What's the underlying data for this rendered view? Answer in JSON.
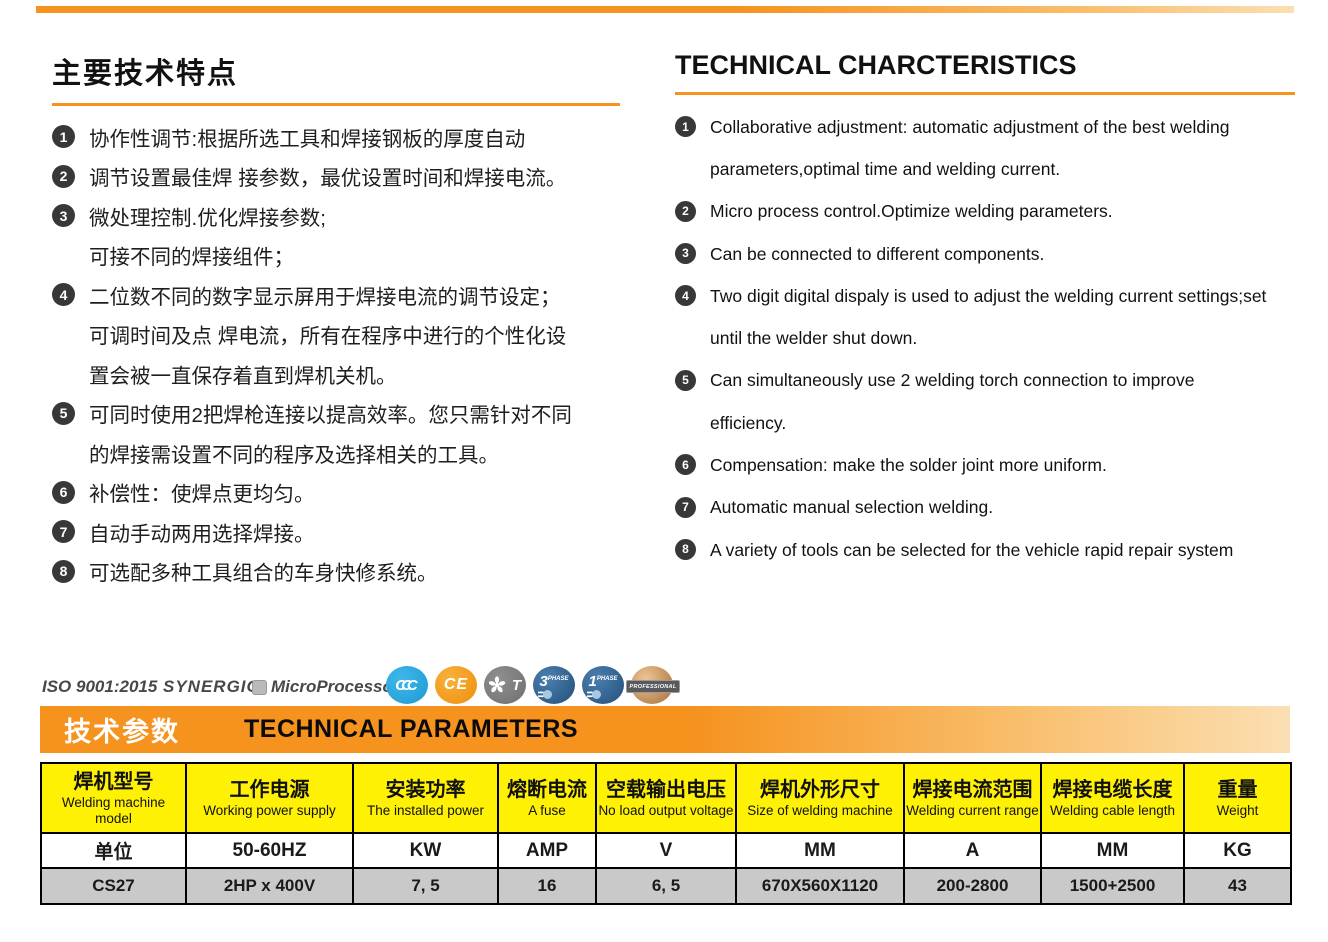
{
  "features": {
    "cn": {
      "title": "主要技术特点",
      "items": [
        {
          "num": "1",
          "lines": [
            "协作性调节:根据所选工具和焊接钢板的厚度自动"
          ]
        },
        {
          "num": "2",
          "lines": [
            "调节设置最佳焊 接参数，最优设置时间和焊接电流。"
          ]
        },
        {
          "num": "3",
          "lines": [
            "微处理控制.优化焊接参数;",
            "可接不同的焊接组件；"
          ]
        },
        {
          "num": "4",
          "lines": [
            "二位数不同的数字显示屏用于焊接电流的调节设定；",
            "可调时间及点 焊电流，所有在程序中进行的个性化设",
            "置会被一直保存着直到焊机关机。"
          ]
        },
        {
          "num": "5",
          "lines": [
            "可同时使用2把焊枪连接以提高效率。您只需针对不同",
            "的焊接需设置不同的程序及选择相关的工具。"
          ]
        },
        {
          "num": "6",
          "lines": [
            "补偿性：使焊点更均匀。"
          ]
        },
        {
          "num": "7",
          "lines": [
            "自动手动两用选择焊接。"
          ]
        },
        {
          "num": "8",
          "lines": [
            "可选配多种工具组合的车身快修系统。"
          ]
        }
      ]
    },
    "en": {
      "title": "TECHNICAL CHARCTERISTICS",
      "items": [
        {
          "num": "1",
          "lines": [
            "Collaborative adjustment: automatic adjustment of the best welding",
            "parameters,optimal time and welding current."
          ]
        },
        {
          "num": "2",
          "lines": [
            "Micro process control.Optimize welding parameters."
          ]
        },
        {
          "num": "3",
          "lines": [
            "Can be connected to different components."
          ]
        },
        {
          "num": "4",
          "lines": [
            "Two digit digital dispaly is used to adjust the welding current settings;set",
            "until the welder shut down."
          ]
        },
        {
          "num": "5",
          "lines": [
            "Can simultaneously use 2  welding torch connection to improve",
            "efficiency."
          ]
        },
        {
          "num": "6",
          "lines": [
            "Compensation: make the solder joint more uniform."
          ]
        },
        {
          "num": "7",
          "lines": [
            "Automatic manual selection welding."
          ]
        },
        {
          "num": "8",
          "lines": [
            "A variety of tools can be selected for the vehicle rapid repair system"
          ]
        }
      ]
    }
  },
  "brand": {
    "iso": "ISO 9001:2015",
    "synergic": "SYNERGIC",
    "microprocessor": "MicroProcessor",
    "badges": [
      {
        "type": "ccc",
        "label": "CCC",
        "color_start": "#3FB7E8",
        "color_end": "#1D9AD6"
      },
      {
        "type": "ce",
        "label": "CE",
        "color_start": "#F8B13C",
        "color_end": "#EE8F0A"
      },
      {
        "type": "fan",
        "label": "T",
        "color_start": "#8F8F8F",
        "color_end": "#6F6F6F"
      },
      {
        "type": "phase",
        "big": "3",
        "small": "PHASE",
        "color_start": "#4A7FAE",
        "color_end": "#24507C"
      },
      {
        "type": "phase",
        "big": "1",
        "small": "PHASE",
        "color_start": "#4A7FAE",
        "color_end": "#24507C"
      },
      {
        "type": "professional",
        "label": "PROFESSIONAL",
        "color_start": "#EEC495",
        "color_end": "#A56F36"
      }
    ]
  },
  "banner": {
    "zh": "技术参数",
    "en": "TECHNICAL PARAMETERS"
  },
  "table": {
    "headers": [
      {
        "zh": "焊机型号",
        "en": "Welding machine model"
      },
      {
        "zh": "工作电源",
        "en": "Working power supply"
      },
      {
        "zh": "安装功率",
        "en": "The installed power"
      },
      {
        "zh": "熔断电流",
        "en": "A fuse"
      },
      {
        "zh": "空载输出电压",
        "en": "No load output voltage"
      },
      {
        "zh": "焊机外形尺寸",
        "en": "Size of welding machine"
      },
      {
        "zh": "焊接电流范围",
        "en": "Welding current range"
      },
      {
        "zh": "焊接电缆长度",
        "en": "Welding cable length"
      },
      {
        "zh": "重量",
        "en": "Weight"
      }
    ],
    "unit_row": [
      "单位",
      "50-60HZ",
      "KW",
      "AMP",
      "V",
      "MM",
      "A",
      "MM",
      "KG"
    ],
    "value_row": [
      "CS27",
      "2HP x 400V",
      "7, 5",
      "16",
      "6, 5",
      "670X560X1120",
      "200-2800",
      "1500+2500",
      "43"
    ]
  },
  "colors": {
    "accent_orange": "#F6921E",
    "table_header_yellow": "#FFF104",
    "value_row_gray": "#C9C9C9",
    "bullet_dark": "#383838"
  }
}
